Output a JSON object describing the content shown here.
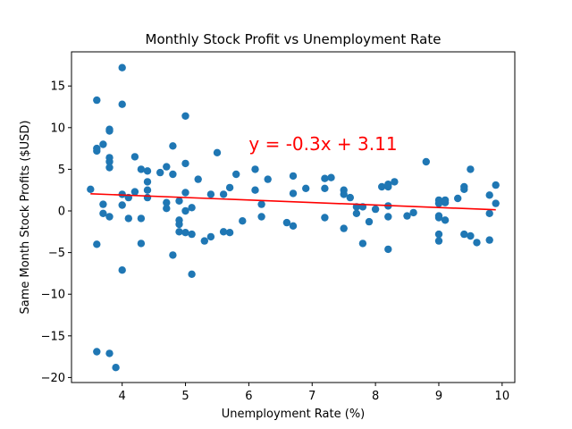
{
  "chart_data": {
    "type": "scatter",
    "title": "Monthly Stock Profit vs Unemployment Rate",
    "xlabel": "Unemployment Rate (%)",
    "ylabel": "Same Month Stock Profits ($USD)",
    "xlim": [
      3.2,
      10.2
    ],
    "ylim": [
      -20.6,
      19.1
    ],
    "xticks": [
      4,
      5,
      6,
      7,
      8,
      9,
      10
    ],
    "yticks": [
      -20,
      -15,
      -10,
      -5,
      0,
      5,
      10,
      15
    ],
    "grid": false,
    "marker_color": "#1f77b4",
    "regression": {
      "slope": -0.3,
      "intercept": 3.11,
      "x_range": [
        3.5,
        9.9
      ],
      "color": "#ff0000",
      "equation_label": "y = -0.3x + 3.11",
      "label_anchor": [
        6.0,
        7.3
      ]
    },
    "points": [
      [
        3.5,
        2.6
      ],
      [
        3.6,
        13.3
      ],
      [
        3.6,
        7.5
      ],
      [
        3.6,
        7.2
      ],
      [
        3.6,
        -4.0
      ],
      [
        3.6,
        -16.9
      ],
      [
        3.7,
        8.0
      ],
      [
        3.7,
        0.8
      ],
      [
        3.7,
        -0.3
      ],
      [
        3.8,
        9.8
      ],
      [
        3.8,
        9.6
      ],
      [
        3.8,
        6.4
      ],
      [
        3.8,
        5.9
      ],
      [
        3.8,
        5.2
      ],
      [
        3.8,
        -0.7
      ],
      [
        3.8,
        -17.1
      ],
      [
        3.9,
        -18.8
      ],
      [
        4.0,
        17.2
      ],
      [
        4.0,
        12.8
      ],
      [
        4.0,
        2.0
      ],
      [
        4.0,
        0.7
      ],
      [
        4.0,
        -7.1
      ],
      [
        4.1,
        1.6
      ],
      [
        4.1,
        -0.9
      ],
      [
        4.2,
        6.5
      ],
      [
        4.2,
        2.3
      ],
      [
        4.3,
        5.0
      ],
      [
        4.3,
        -0.9
      ],
      [
        4.3,
        -3.9
      ],
      [
        4.4,
        4.8
      ],
      [
        4.4,
        3.5
      ],
      [
        4.4,
        2.5
      ],
      [
        4.4,
        1.6
      ],
      [
        4.6,
        4.6
      ],
      [
        4.7,
        5.3
      ],
      [
        4.7,
        1.0
      ],
      [
        4.7,
        0.3
      ],
      [
        4.8,
        7.8
      ],
      [
        4.8,
        4.4
      ],
      [
        4.8,
        -5.3
      ],
      [
        4.9,
        1.2
      ],
      [
        4.9,
        -1.1
      ],
      [
        4.9,
        -1.6
      ],
      [
        4.9,
        -2.5
      ],
      [
        5.0,
        11.4
      ],
      [
        5.0,
        5.7
      ],
      [
        5.0,
        2.2
      ],
      [
        5.0,
        0.0
      ],
      [
        5.0,
        -2.6
      ],
      [
        5.1,
        0.4
      ],
      [
        5.1,
        -2.8
      ],
      [
        5.1,
        -7.6
      ],
      [
        5.2,
        3.8
      ],
      [
        5.3,
        -3.6
      ],
      [
        5.4,
        2.0
      ],
      [
        5.4,
        -3.1
      ],
      [
        5.5,
        7.0
      ],
      [
        5.6,
        2.0
      ],
      [
        5.6,
        -2.5
      ],
      [
        5.7,
        2.8
      ],
      [
        5.7,
        -2.6
      ],
      [
        5.8,
        4.4
      ],
      [
        5.9,
        -1.2
      ],
      [
        6.1,
        5.0
      ],
      [
        6.1,
        2.5
      ],
      [
        6.2,
        0.8
      ],
      [
        6.2,
        -0.7
      ],
      [
        6.3,
        3.8
      ],
      [
        6.6,
        -1.4
      ],
      [
        6.7,
        4.2
      ],
      [
        6.7,
        2.1
      ],
      [
        6.7,
        -1.8
      ],
      [
        6.9,
        2.7
      ],
      [
        7.2,
        3.9
      ],
      [
        7.2,
        2.7
      ],
      [
        7.2,
        -0.8
      ],
      [
        7.3,
        4.0
      ],
      [
        7.5,
        2.5
      ],
      [
        7.5,
        2.0
      ],
      [
        7.5,
        -2.1
      ],
      [
        7.6,
        1.6
      ],
      [
        7.7,
        0.5
      ],
      [
        7.7,
        -0.3
      ],
      [
        7.8,
        0.5
      ],
      [
        7.8,
        -3.9
      ],
      [
        7.9,
        -1.3
      ],
      [
        8.0,
        0.2
      ],
      [
        8.1,
        2.9
      ],
      [
        8.2,
        3.2
      ],
      [
        8.2,
        2.9
      ],
      [
        8.2,
        0.6
      ],
      [
        8.2,
        -0.7
      ],
      [
        8.2,
        -4.6
      ],
      [
        8.3,
        3.5
      ],
      [
        8.5,
        -0.6
      ],
      [
        8.6,
        -0.2
      ],
      [
        8.8,
        5.9
      ],
      [
        9.0,
        1.3
      ],
      [
        9.0,
        0.9
      ],
      [
        9.0,
        -0.6
      ],
      [
        9.0,
        -0.8
      ],
      [
        9.0,
        -2.8
      ],
      [
        9.0,
        -3.6
      ],
      [
        9.1,
        1.3
      ],
      [
        9.1,
        1.0
      ],
      [
        9.1,
        -1.1
      ],
      [
        9.3,
        1.5
      ],
      [
        9.4,
        2.9
      ],
      [
        9.4,
        2.6
      ],
      [
        9.4,
        -2.8
      ],
      [
        9.5,
        5.0
      ],
      [
        9.5,
        -3.0
      ],
      [
        9.6,
        -3.8
      ],
      [
        9.8,
        1.9
      ],
      [
        9.8,
        -0.3
      ],
      [
        9.8,
        -3.5
      ],
      [
        9.9,
        3.1
      ],
      [
        9.9,
        0.9
      ]
    ]
  }
}
